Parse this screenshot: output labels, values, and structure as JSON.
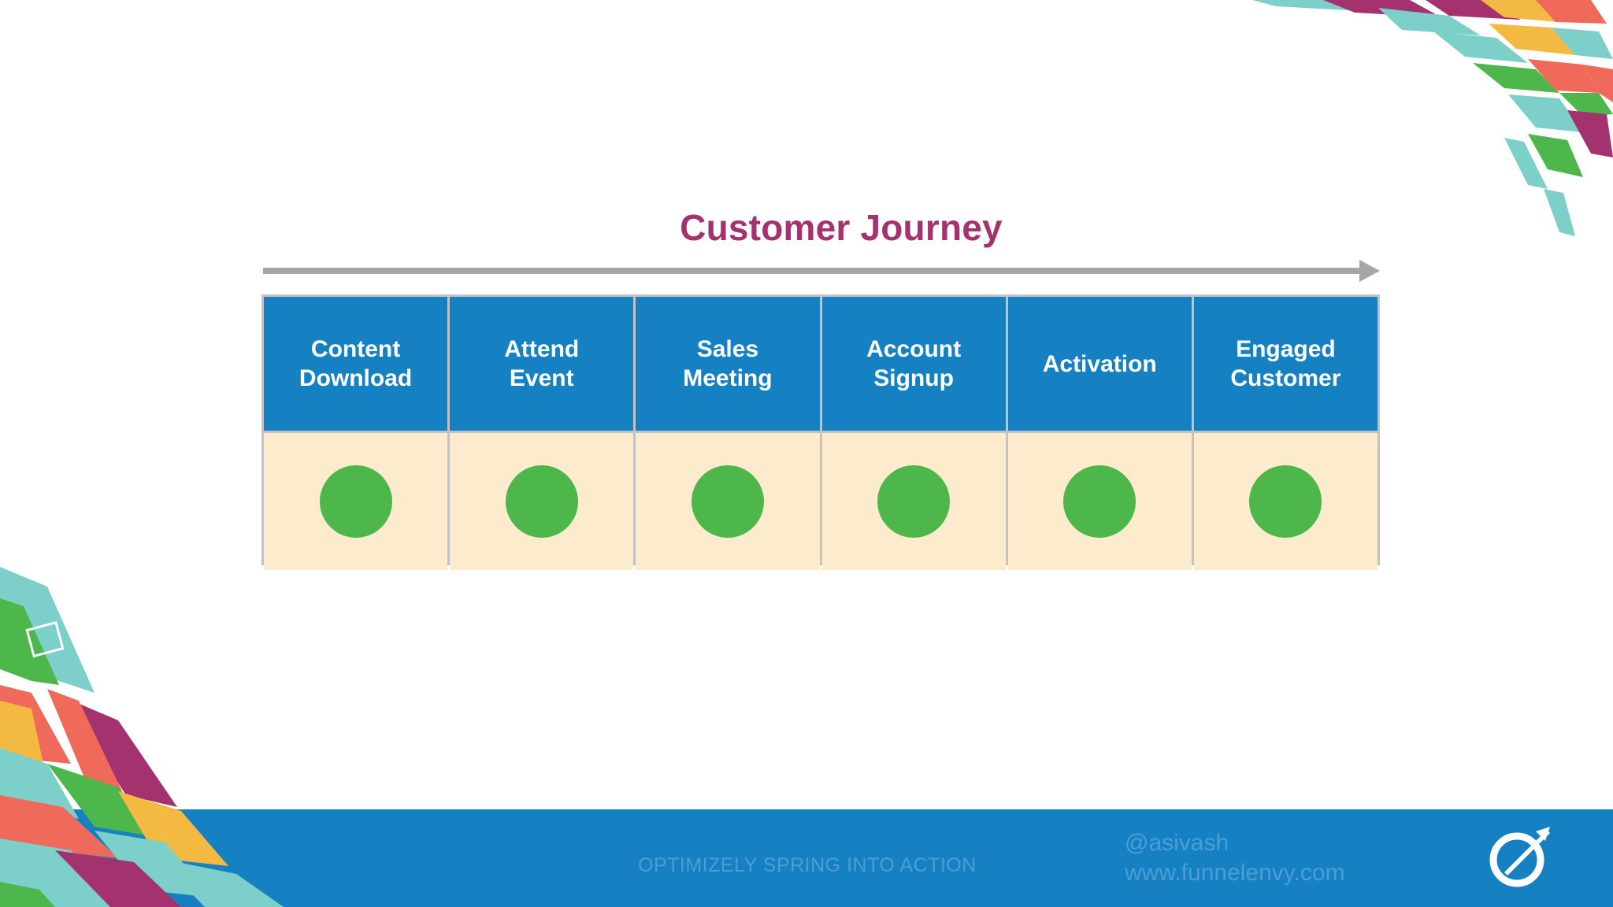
{
  "slide": {
    "title": "Customer Journey",
    "stages": [
      {
        "label": "Content\nDownload",
        "status": "complete"
      },
      {
        "label": "Attend\nEvent",
        "status": "complete"
      },
      {
        "label": "Sales\nMeeting",
        "status": "complete"
      },
      {
        "label": "Account\nSignup",
        "status": "complete"
      },
      {
        "label": "Activation",
        "status": "complete"
      },
      {
        "label": "Engaged\nCustomer",
        "status": "complete"
      }
    ]
  },
  "footer": {
    "event": "OPTIMIZELY SPRING INTO ACTION",
    "handle": "@asivash",
    "website": "www.funnelenvy.com",
    "logo_icon": "optimizely-logo-icon"
  },
  "colors": {
    "title": "#a3326f",
    "header": "#1681c2",
    "cell": "#fcebcd",
    "dot": "#4eb74c",
    "footer": "#1581c3"
  }
}
